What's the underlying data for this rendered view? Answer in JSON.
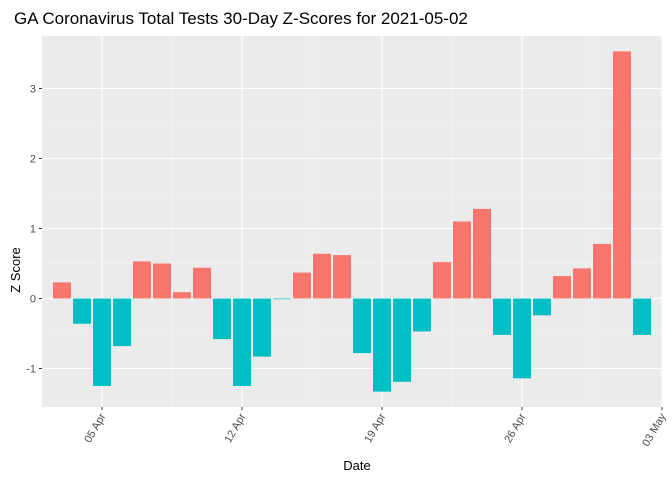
{
  "chart_data": {
    "type": "bar",
    "title": "GA Coronavirus Total Tests 30-Day Z-Scores for 2021-05-02",
    "xlabel": "Date",
    "ylabel": "Z Score",
    "dates": [
      "2021-04-03",
      "2021-04-04",
      "2021-04-05",
      "2021-04-06",
      "2021-04-07",
      "2021-04-08",
      "2021-04-09",
      "2021-04-10",
      "2021-04-11",
      "2021-04-12",
      "2021-04-13",
      "2021-04-14",
      "2021-04-15",
      "2021-04-16",
      "2021-04-17",
      "2021-04-18",
      "2021-04-19",
      "2021-04-20",
      "2021-04-21",
      "2021-04-22",
      "2021-04-23",
      "2021-04-24",
      "2021-04-25",
      "2021-04-26",
      "2021-04-27",
      "2021-04-28",
      "2021-04-29",
      "2021-04-30",
      "2021-05-01",
      "2021-05-02"
    ],
    "values": [
      0.23,
      -0.36,
      -1.25,
      -0.68,
      0.53,
      0.5,
      0.09,
      0.44,
      -0.58,
      -1.25,
      -0.83,
      -0.01,
      0.37,
      0.64,
      0.62,
      -0.78,
      -1.33,
      -1.19,
      -0.47,
      0.52,
      1.1,
      1.28,
      -0.52,
      -1.14,
      -0.24,
      0.32,
      0.43,
      0.78,
      3.53,
      -0.52
    ],
    "x_ticks": [
      {
        "date": "2021-04-05",
        "label": "05 Apr"
      },
      {
        "date": "2021-04-12",
        "label": "12 Apr"
      },
      {
        "date": "2021-04-19",
        "label": "19 Apr"
      },
      {
        "date": "2021-04-26",
        "label": "26 Apr"
      },
      {
        "date": "2021-05-03",
        "label": "03 May"
      }
    ],
    "y_ticks": [
      -1,
      0,
      1,
      2,
      3
    ],
    "ylim": [
      -1.55,
      3.75
    ],
    "xlim": [
      "2021-04-02",
      "2021-05-03"
    ],
    "grid": true,
    "legend": "none",
    "colors": {
      "positive": "#F8766D",
      "negative": "#00BFC4",
      "panel": "#EBEBEB",
      "grid_major": "#FFFFFF",
      "grid_minor": "#F5F5F5"
    }
  }
}
